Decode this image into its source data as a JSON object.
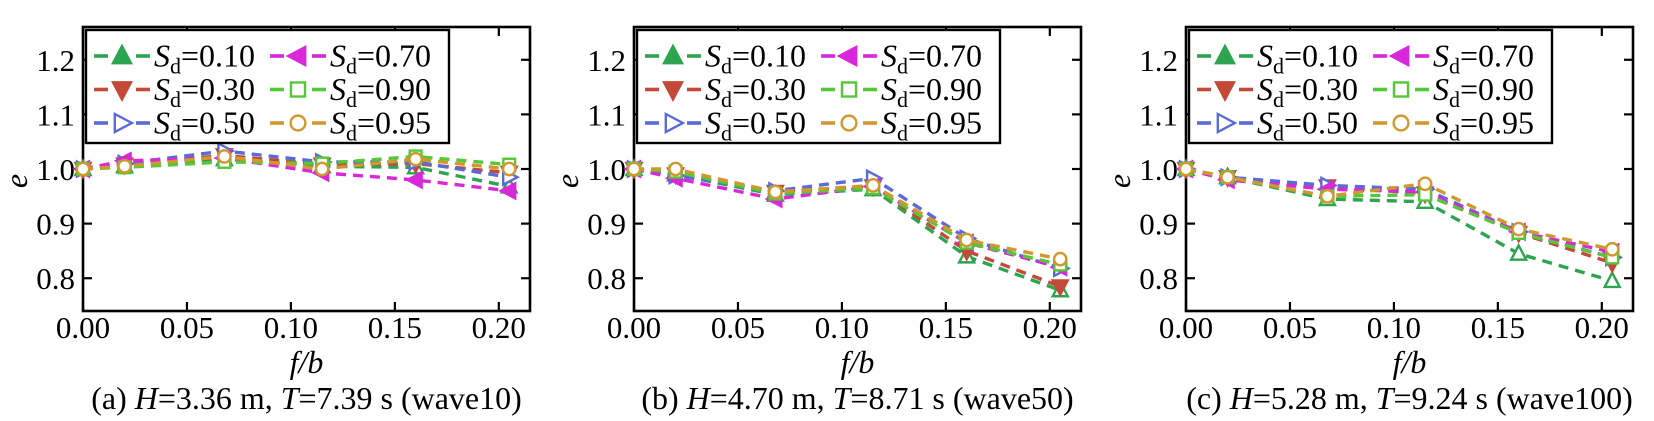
{
  "figure": {
    "background": "#ffffff",
    "axis_color": "#000000",
    "text_color": "#000000"
  },
  "chart_data": {
    "type": "line",
    "line_style": "dashed",
    "grid": false,
    "x": [
      0.0,
      0.02,
      0.068,
      0.115,
      0.16,
      0.205
    ],
    "xlabel": "f/b",
    "ylabel": "e",
    "xlim": [
      0.0,
      0.215
    ],
    "ylim": [
      0.74,
      1.26
    ],
    "x_ticks": [
      0.0,
      0.05,
      0.1,
      0.15,
      0.2
    ],
    "x_tick_labels": [
      "0.00",
      "0.05",
      "0.10",
      "0.15",
      "0.20"
    ],
    "y_ticks": [
      0.8,
      0.9,
      1.0,
      1.1,
      1.2
    ],
    "y_tick_labels": [
      "0.8",
      "0.9",
      "1.0",
      "1.1",
      "1.2"
    ],
    "legend": {
      "position": "upper-left-inside",
      "columns": 2
    },
    "series_meta": [
      {
        "key": "sd010",
        "label_base": "S",
        "label_sub": "d",
        "label_suffix": "=0.10",
        "color": "#2ca450",
        "marker": "triangle-up",
        "face": "open",
        "legend_face": "filled"
      },
      {
        "key": "sd030",
        "label_base": "S",
        "label_sub": "d",
        "label_suffix": "=0.30",
        "color": "#c44936",
        "marker": "triangle-down",
        "face": "filled",
        "legend_face": "filled"
      },
      {
        "key": "sd050",
        "label_base": "S",
        "label_sub": "d",
        "label_suffix": "=0.50",
        "color": "#5a6bd8",
        "marker": "triangle-right",
        "face": "open",
        "legend_face": "open"
      },
      {
        "key": "sd070",
        "label_base": "S",
        "label_sub": "d",
        "label_suffix": "=0.70",
        "color": "#d928d9",
        "marker": "triangle-left",
        "face": "filled",
        "legend_face": "filled"
      },
      {
        "key": "sd090",
        "label_base": "S",
        "label_sub": "d",
        "label_suffix": "=0.90",
        "color": "#55c838",
        "marker": "square",
        "face": "open",
        "legend_face": "open"
      },
      {
        "key": "sd095",
        "label_base": "S",
        "label_sub": "d",
        "label_suffix": "=0.95",
        "color": "#d0992e",
        "marker": "circle",
        "face": "open",
        "legend_face": "open"
      }
    ],
    "panels": [
      {
        "id": "a",
        "caption": "(a) H=3.36 m, T=7.39 s (wave10)",
        "series": [
          {
            "name": "Sd=0.10",
            "values": [
              1.0,
              1.005,
              1.018,
              1.005,
              1.003,
              0.968
            ]
          },
          {
            "name": "Sd=0.30",
            "values": [
              1.0,
              1.008,
              1.025,
              1.008,
              1.01,
              0.993
            ]
          },
          {
            "name": "Sd=0.50",
            "values": [
              1.0,
              1.01,
              1.033,
              1.013,
              1.013,
              0.985
            ]
          },
          {
            "name": "Sd=0.70",
            "values": [
              1.0,
              1.015,
              1.02,
              0.993,
              0.98,
              0.96
            ]
          },
          {
            "name": "Sd=0.90",
            "values": [
              1.0,
              1.003,
              1.013,
              1.01,
              1.023,
              1.008
            ]
          },
          {
            "name": "Sd=0.95",
            "values": [
              1.0,
              1.005,
              1.023,
              1.0,
              1.018,
              1.0
            ]
          }
        ]
      },
      {
        "id": "b",
        "caption": "(b) H=4.70 m, T=8.71 s (wave50)",
        "series": [
          {
            "name": "Sd=0.10",
            "values": [
              1.0,
              0.99,
              0.953,
              0.963,
              0.84,
              0.778
            ]
          },
          {
            "name": "Sd=0.30",
            "values": [
              1.0,
              0.99,
              0.958,
              0.968,
              0.85,
              0.785
            ]
          },
          {
            "name": "Sd=0.50",
            "values": [
              1.0,
              0.988,
              0.96,
              0.983,
              0.873,
              0.818
            ]
          },
          {
            "name": "Sd=0.70",
            "values": [
              1.0,
              0.983,
              0.945,
              0.968,
              0.865,
              0.82
            ]
          },
          {
            "name": "Sd=0.90",
            "values": [
              1.0,
              0.995,
              0.955,
              0.965,
              0.865,
              0.825
            ]
          },
          {
            "name": "Sd=0.95",
            "values": [
              1.0,
              1.0,
              0.958,
              0.97,
              0.87,
              0.835
            ]
          }
        ]
      },
      {
        "id": "c",
        "caption": "(c) H=5.28 m, T=9.24 s (wave100)",
        "series": [
          {
            "name": "Sd=0.10",
            "values": [
              1.0,
              0.985,
              0.945,
              0.94,
              0.845,
              0.795
            ]
          },
          {
            "name": "Sd=0.30",
            "values": [
              1.0,
              0.985,
              0.968,
              0.955,
              0.883,
              0.828
            ]
          },
          {
            "name": "Sd=0.50",
            "values": [
              1.0,
              0.985,
              0.97,
              0.963,
              0.885,
              0.838
            ]
          },
          {
            "name": "Sd=0.70",
            "values": [
              1.0,
              0.98,
              0.963,
              0.958,
              0.885,
              0.848
            ]
          },
          {
            "name": "Sd=0.90",
            "values": [
              1.0,
              0.985,
              0.95,
              0.953,
              0.883,
              0.838
            ]
          },
          {
            "name": "Sd=0.95",
            "values": [
              1.0,
              0.985,
              0.95,
              0.973,
              0.89,
              0.853
            ]
          }
        ]
      }
    ]
  }
}
